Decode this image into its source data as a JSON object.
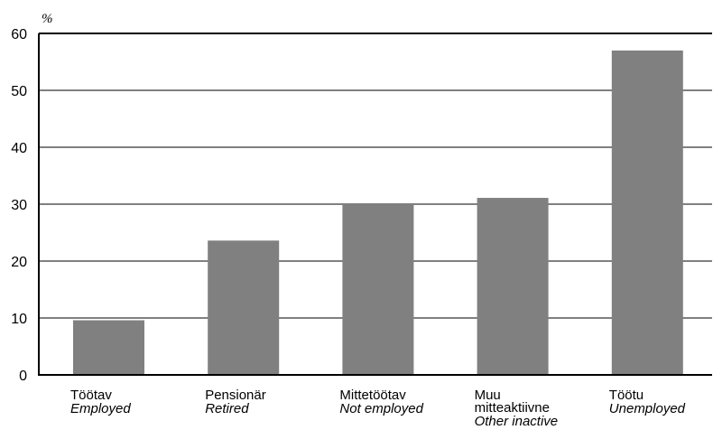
{
  "chart_data": {
    "type": "bar",
    "ylabel": "%",
    "ylim": [
      0,
      60
    ],
    "yticks": [
      0,
      10,
      20,
      30,
      40,
      50,
      60
    ],
    "grid": true,
    "bar_color": "#808080",
    "categories": [
      {
        "et": [
          "Töötav"
        ],
        "en": [
          "Employed"
        ]
      },
      {
        "et": [
          "Pensionär"
        ],
        "en": [
          "Retired"
        ]
      },
      {
        "et": [
          "Mittetöötav"
        ],
        "en": [
          "Not employed"
        ]
      },
      {
        "et": [
          "Muu",
          "mitteaktiivne"
        ],
        "en": [
          "Other inactive"
        ]
      },
      {
        "et": [
          "Töötu"
        ],
        "en": [
          "Unemployed"
        ]
      }
    ],
    "values": [
      9.6,
      23.6,
      30.0,
      31.1,
      57.0
    ]
  }
}
